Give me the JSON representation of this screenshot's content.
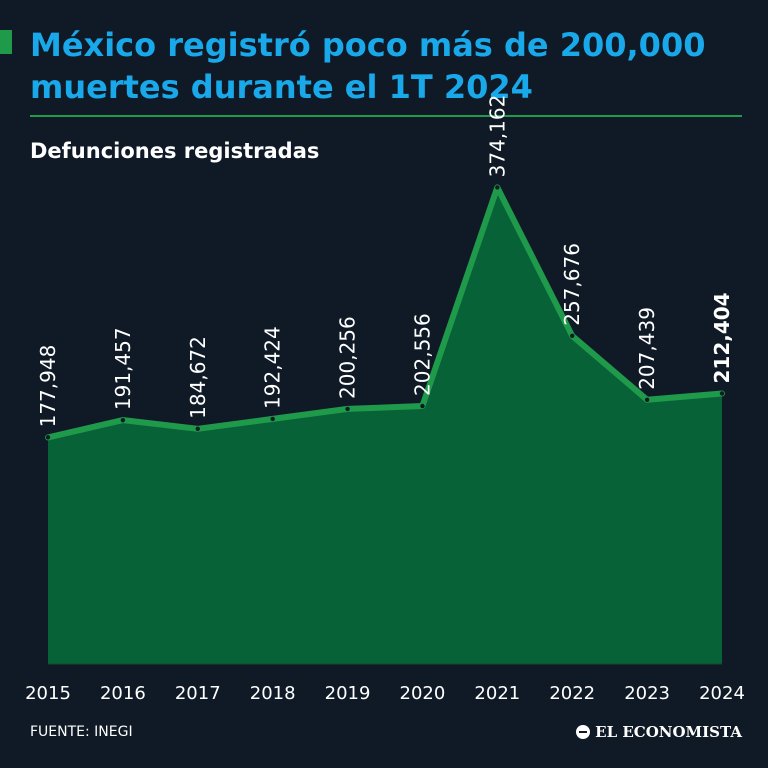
{
  "header": {
    "title": "México registró poco más de 200,000 muertes durante el 1T 2024",
    "subtitle": "Defunciones registradas"
  },
  "footer": {
    "source": "FUENTE: INEGI",
    "brand": "EL ECONOMISTA",
    "brand_icon": "newspaper-logo-icon"
  },
  "colors": {
    "background": "#0f1a26",
    "title": "#19a9ea",
    "accent": "#1f9a4a",
    "area_fill": "#076237",
    "line": "#1f9a4a",
    "text": "#ffffff"
  },
  "chart_data": {
    "type": "area",
    "x": [
      "2015",
      "2016",
      "2017",
      "2018",
      "2019",
      "2020",
      "2021",
      "2022",
      "2023",
      "2024"
    ],
    "values": [
      177948,
      191457,
      184672,
      192424,
      200256,
      202556,
      374162,
      257676,
      207439,
      212404
    ],
    "value_labels": [
      "177,948",
      "191,457",
      "184,672",
      "192,424",
      "200,256",
      "202,556",
      "374,162",
      "257,676",
      "207,439",
      "212,404"
    ],
    "highlight_index": 9,
    "title": "Defunciones registradas",
    "xlabel": "",
    "ylabel": "",
    "ylim": [
      0,
      380000
    ],
    "grid": false,
    "legend": "none"
  }
}
